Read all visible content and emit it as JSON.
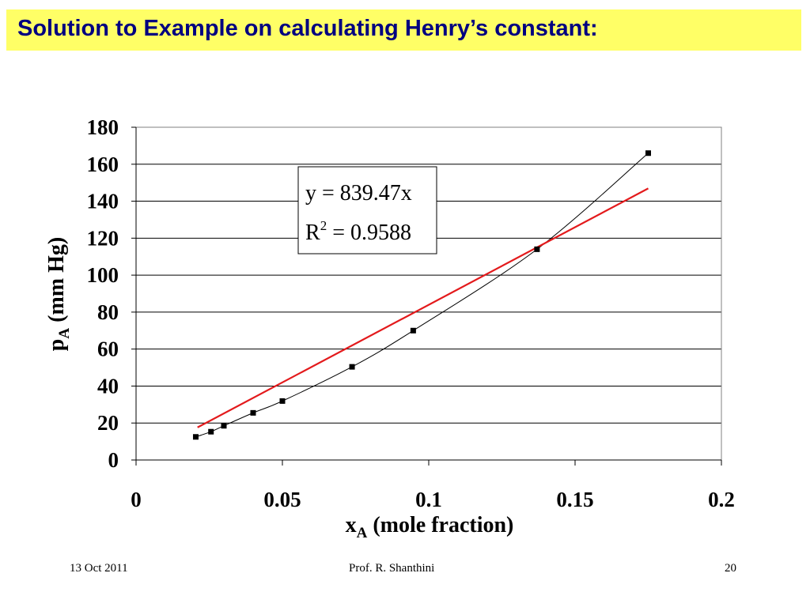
{
  "slide": {
    "title": "Solution to Example on calculating Henry’s constant:",
    "footer_left": "13 Oct 2011",
    "footer_center": "Prof. R. Shanthini",
    "footer_right": "20"
  },
  "chart_data": {
    "type": "scatter",
    "title": "",
    "xlabel_main": "x",
    "xlabel_sub": "A",
    "xlabel_rest": " (mole fraction)",
    "ylabel_main": "p",
    "ylabel_sub": "A",
    "ylabel_rest": " (mm Hg)",
    "xlim": [
      0,
      0.2
    ],
    "ylim": [
      0,
      180
    ],
    "xticks": [
      "0",
      "0.05",
      "0.1",
      "0.15",
      "0.2"
    ],
    "yticks": [
      "0",
      "20",
      "40",
      "60",
      "80",
      "100",
      "120",
      "140",
      "160",
      "180"
    ],
    "grid": "horizontal",
    "series": [
      {
        "marker": "square",
        "line": "smooth",
        "color": "#000000",
        "x": [
          0.0204,
          0.0256,
          0.03,
          0.04,
          0.05,
          0.0738,
          0.0947,
          0.137,
          0.175
        ],
        "y": [
          12.5,
          15.3,
          18.5,
          25.5,
          31.9,
          50.4,
          70.0,
          114.0,
          166.0
        ]
      }
    ],
    "trendline": {
      "type": "linear",
      "slope": 839.47,
      "intercept": 0,
      "x_range": [
        0.021,
        0.175
      ],
      "color": "#e31a1c",
      "equation": "y = 839.47x",
      "r2_main": "R",
      "r2_sup": "2",
      "r2_rest": " = 0.9588"
    }
  }
}
